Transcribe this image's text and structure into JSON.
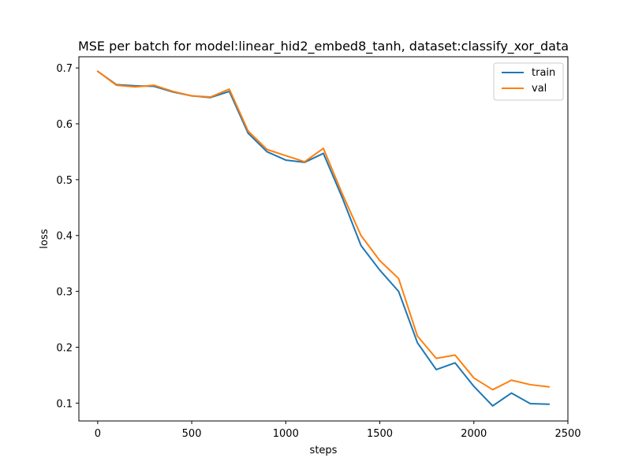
{
  "chart_data": {
    "type": "line",
    "title": "MSE per batch for model:linear_hid2_embed8_tanh, dataset:classify_xor_data",
    "xlabel": "steps",
    "ylabel": "loss",
    "xlim": [
      -100,
      2500
    ],
    "ylim": [
      0.068,
      0.72
    ],
    "x_ticks": [
      0,
      500,
      1000,
      1500,
      2000,
      2500
    ],
    "x_tick_labels": [
      "0",
      "500",
      "1000",
      "1500",
      "2000",
      "2500"
    ],
    "y_ticks": [
      0.1,
      0.2,
      0.3,
      0.4,
      0.5,
      0.6,
      0.7
    ],
    "y_tick_labels": [
      "0.1",
      "0.2",
      "0.3",
      "0.4",
      "0.5",
      "0.6",
      "0.7"
    ],
    "grid": false,
    "legend_position": "top-right",
    "x": [
      0,
      100,
      200,
      300,
      400,
      500,
      600,
      700,
      800,
      900,
      1000,
      1100,
      1200,
      1300,
      1400,
      1500,
      1600,
      1700,
      1800,
      1900,
      2000,
      2100,
      2200,
      2300,
      2400
    ],
    "series": [
      {
        "name": "train",
        "color": "#1f77b4",
        "values": [
          0.694,
          0.67,
          0.668,
          0.667,
          0.657,
          0.65,
          0.647,
          0.658,
          0.583,
          0.55,
          0.535,
          0.531,
          0.547,
          0.468,
          0.382,
          0.338,
          0.3,
          0.208,
          0.16,
          0.172,
          0.13,
          0.095,
          0.118,
          0.099,
          0.098
        ]
      },
      {
        "name": "val",
        "color": "#ff7f0e",
        "values": [
          0.694,
          0.669,
          0.666,
          0.669,
          0.658,
          0.65,
          0.648,
          0.662,
          0.587,
          0.554,
          0.543,
          0.532,
          0.556,
          0.475,
          0.4,
          0.355,
          0.323,
          0.22,
          0.18,
          0.186,
          0.145,
          0.124,
          0.141,
          0.133,
          0.129
        ]
      }
    ]
  }
}
